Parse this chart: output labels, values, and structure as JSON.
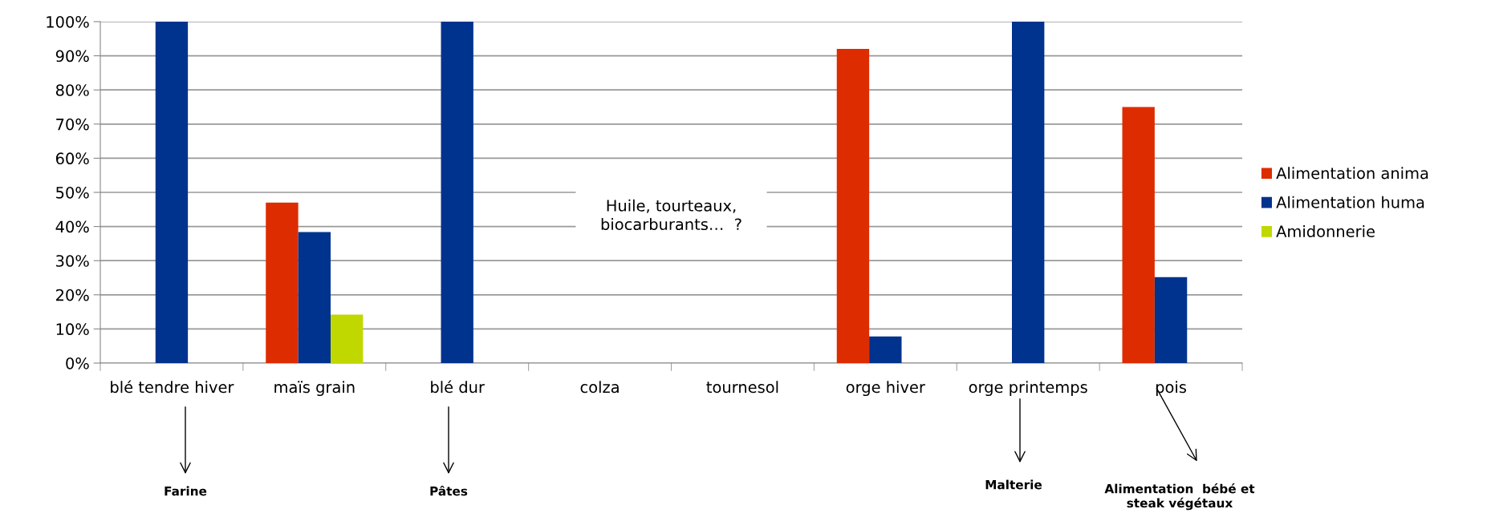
{
  "chart_data": {
    "type": "bar",
    "categories": [
      "blé tendre hiver",
      "maïs grain",
      "blé dur",
      "colza",
      "tournesol",
      "orge hiver",
      "orge printemps",
      "pois"
    ],
    "series": [
      {
        "name": "Alimentation anima",
        "color": "#dd2c00",
        "values": [
          null,
          47,
          null,
          null,
          null,
          92,
          null,
          75
        ]
      },
      {
        "name": "Alimentation huma",
        "color": "#00338d",
        "values": [
          100,
          38.4,
          100,
          null,
          null,
          7.8,
          100,
          25.2
        ]
      },
      {
        "name": "Amidonnerie",
        "color": "#c0d800",
        "values": [
          null,
          14.2,
          null,
          null,
          null,
          null,
          null,
          null
        ]
      }
    ],
    "ylim": [
      0,
      100
    ],
    "yticks": [
      {
        "value": 0,
        "label": "0%"
      },
      {
        "value": 10,
        "label": "10%"
      },
      {
        "value": 20,
        "label": "20%"
      },
      {
        "value": 30,
        "label": "30%"
      },
      {
        "value": 40,
        "label": "40%"
      },
      {
        "value": 50,
        "label": "50%"
      },
      {
        "value": 60,
        "label": "60%"
      },
      {
        "value": 70,
        "label": "70%"
      },
      {
        "value": 80,
        "label": "80%"
      },
      {
        "value": 90,
        "label": "90%"
      },
      {
        "value": 100,
        "label": "100%"
      }
    ],
    "grid": "y",
    "legend": "right",
    "annotations": [
      "Huile, tourteaux,\nbiocarburants…  ?",
      "Farine",
      "Pâtes",
      "Malterie",
      "Alimentation  bébé et\nsteak végétaux"
    ]
  }
}
